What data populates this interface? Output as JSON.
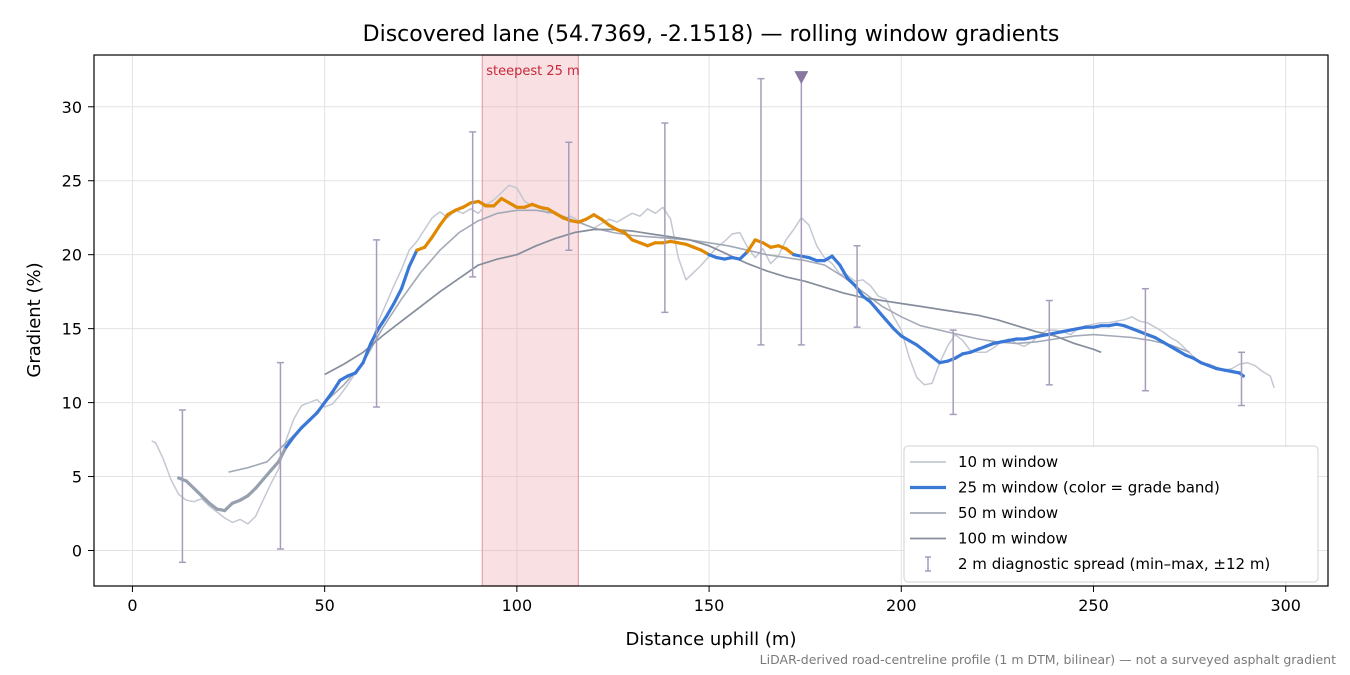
{
  "chart_data": {
    "type": "line",
    "title": "Discovered lane (54.7369, -2.1518) — rolling window gradients",
    "xlabel": "Distance uphill (m)",
    "ylabel": "Gradient (%)",
    "xlim": [
      -10,
      311
    ],
    "ylim": [
      -2.4,
      33.5
    ],
    "xticks": [
      0,
      50,
      100,
      150,
      200,
      250,
      300
    ],
    "yticks": [
      0,
      5,
      10,
      15,
      20,
      25,
      30
    ],
    "grid": true,
    "legend_position": "bottom-right",
    "footnote": "LiDAR-derived road-centreline profile (1 m DTM, bilinear) — not a surveyed asphalt gradient",
    "highlight": {
      "label": "steepest 25 m",
      "x_start": 91,
      "x_end": 116,
      "color": "#e8a0a8"
    },
    "marker": {
      "x": 174,
      "y": 32,
      "color": "#8878a0"
    },
    "grade_band_colors": {
      "moderate": "#3a78d8",
      "steep": "#e08800"
    },
    "legend": [
      {
        "label": "10 m window",
        "kind": "line",
        "color": "#c3c8d2"
      },
      {
        "label": "25 m window (color = grade band)",
        "kind": "thick",
        "color": "#3a78d8"
      },
      {
        "label": "50 m window",
        "kind": "line",
        "color": "#a2a9b7"
      },
      {
        "label": "100 m window",
        "kind": "line",
        "color": "#868e9d"
      },
      {
        "label": "2 m diagnostic spread (min–max, ±12 m)",
        "kind": "errorbar",
        "color": "#a89cbc"
      }
    ],
    "series": [
      {
        "name": "10 m window",
        "color": "#c3c8d2",
        "x": [
          5,
          6,
          8,
          10,
          12,
          14,
          16,
          18,
          20,
          22,
          24,
          26,
          28,
          30,
          32,
          34,
          36,
          38,
          40,
          42,
          44,
          46,
          48,
          50,
          52,
          54,
          56,
          58,
          60,
          62,
          64,
          66,
          68,
          70,
          72,
          74,
          76,
          78,
          80,
          82,
          84,
          86,
          88,
          90,
          92,
          94,
          96,
          98,
          100,
          102,
          104,
          106,
          108,
          110,
          112,
          114,
          116,
          118,
          120,
          122,
          124,
          126,
          128,
          130,
          132,
          134,
          136,
          138,
          140,
          142,
          144,
          146,
          148,
          150,
          152,
          154,
          156,
          158,
          160,
          162,
          164,
          166,
          168,
          170,
          172,
          174,
          176,
          178,
          180,
          182,
          184,
          186,
          188,
          190,
          192,
          194,
          196,
          198,
          200,
          202,
          204,
          206,
          208,
          210,
          212,
          214,
          216,
          218,
          220,
          222,
          224,
          226,
          228,
          230,
          232,
          234,
          236,
          238,
          240,
          242,
          244,
          246,
          248,
          250,
          252,
          254,
          256,
          258,
          260,
          262,
          264,
          266,
          268,
          270,
          272,
          274,
          276,
          278,
          280,
          282,
          284,
          286,
          288,
          290,
          292,
          294,
          296,
          297
        ],
        "y": [
          7.4,
          7.3,
          6.2,
          4.8,
          3.8,
          3.4,
          3.3,
          3.5,
          3.0,
          2.6,
          2.2,
          1.9,
          2.1,
          1.8,
          2.3,
          3.4,
          4.5,
          5.5,
          7.5,
          8.9,
          9.8,
          10.0,
          10.2,
          9.7,
          9.9,
          10.5,
          11.2,
          12.0,
          12.8,
          13.9,
          15.5,
          16.7,
          17.9,
          19.0,
          20.3,
          20.9,
          21.7,
          22.5,
          22.9,
          22.5,
          23.0,
          22.8,
          23.1,
          22.8,
          23.4,
          23.7,
          24.2,
          24.7,
          24.5,
          23.6,
          23.3,
          23.2,
          22.8,
          22.9,
          22.4,
          22.6,
          22.3,
          22.0,
          21.8,
          22.1,
          22.4,
          22.2,
          22.5,
          22.8,
          22.6,
          23.1,
          22.8,
          23.2,
          22.4,
          19.8,
          18.3,
          18.8,
          19.3,
          19.9,
          20.5,
          20.9,
          21.4,
          21.5,
          20.5,
          19.8,
          20.4,
          19.4,
          19.9,
          21.0,
          21.7,
          22.5,
          22.0,
          20.6,
          19.8,
          19.4,
          18.7,
          18.6,
          18.2,
          18.3,
          17.9,
          17.2,
          17.0,
          15.8,
          14.9,
          13.1,
          11.7,
          11.2,
          11.3,
          12.7,
          13.8,
          14.6,
          14.2,
          13.5,
          13.4,
          13.4,
          13.7,
          14.1,
          14.3,
          14.0,
          13.8,
          14.1,
          14.6,
          14.9,
          14.9,
          14.8,
          14.6,
          15.0,
          15.2,
          15.3,
          15.4,
          15.4,
          15.5,
          15.6,
          15.8,
          15.5,
          15.4,
          15.1,
          14.8,
          14.4,
          14.1,
          13.6,
          13.1,
          12.7,
          12.6,
          12.4,
          12.2,
          12.3,
          12.6,
          12.7,
          12.5,
          12.1,
          11.8,
          11.0
        ]
      },
      {
        "name": "25 m window (color = grade band)",
        "color": "#3a78d8",
        "steep_threshold": 20,
        "x": [
          12,
          14,
          16,
          18,
          20,
          22,
          24,
          26,
          28,
          30,
          32,
          34,
          36,
          38,
          40,
          42,
          44,
          46,
          48,
          50,
          52,
          54,
          56,
          58,
          60,
          62,
          64,
          66,
          68,
          70,
          72,
          74,
          76,
          78,
          80,
          82,
          84,
          86,
          88,
          90,
          92,
          94,
          96,
          98,
          100,
          102,
          104,
          106,
          108,
          110,
          112,
          114,
          116,
          118,
          120,
          122,
          124,
          126,
          128,
          130,
          132,
          134,
          136,
          138,
          140,
          142,
          144,
          146,
          148,
          150,
          152,
          154,
          156,
          158,
          160,
          162,
          164,
          166,
          168,
          170,
          172,
          174,
          176,
          178,
          180,
          182,
          184,
          186,
          188,
          190,
          192,
          194,
          196,
          198,
          200,
          202,
          204,
          206,
          208,
          210,
          212,
          214,
          216,
          218,
          220,
          222,
          224,
          226,
          228,
          230,
          232,
          234,
          236,
          238,
          240,
          242,
          244,
          246,
          248,
          250,
          252,
          254,
          256,
          258,
          260,
          262,
          264,
          266,
          268,
          270,
          272,
          274,
          276,
          278,
          280,
          282,
          284,
          286,
          288,
          289
        ],
        "y": [
          4.9,
          4.7,
          4.2,
          3.7,
          3.2,
          2.8,
          2.7,
          3.2,
          3.4,
          3.7,
          4.2,
          4.8,
          5.4,
          6.0,
          7.0,
          7.7,
          8.3,
          8.8,
          9.3,
          10.0,
          10.7,
          11.5,
          11.8,
          12.0,
          12.7,
          14.0,
          15.0,
          15.8,
          16.7,
          17.7,
          19.2,
          20.3,
          20.5,
          21.2,
          22.0,
          22.7,
          23.0,
          23.2,
          23.5,
          23.6,
          23.3,
          23.3,
          23.8,
          23.5,
          23.2,
          23.2,
          23.4,
          23.2,
          23.1,
          22.8,
          22.5,
          22.3,
          22.2,
          22.4,
          22.7,
          22.4,
          22.0,
          21.7,
          21.5,
          21.0,
          20.8,
          20.6,
          20.8,
          20.8,
          20.9,
          20.8,
          20.7,
          20.5,
          20.3,
          20.0,
          19.8,
          19.7,
          19.8,
          19.7,
          20.2,
          21.0,
          20.8,
          20.5,
          20.6,
          20.4,
          20.0,
          19.9,
          19.8,
          19.6,
          19.6,
          19.9,
          19.3,
          18.4,
          17.9,
          17.2,
          16.8,
          16.2,
          15.6,
          15.0,
          14.5,
          14.2,
          13.9,
          13.5,
          13.1,
          12.7,
          12.8,
          13.0,
          13.3,
          13.4,
          13.6,
          13.8,
          14.0,
          14.1,
          14.2,
          14.3,
          14.3,
          14.4,
          14.5,
          14.6,
          14.7,
          14.8,
          14.9,
          15.0,
          15.1,
          15.1,
          15.2,
          15.2,
          15.3,
          15.2,
          15.0,
          14.8,
          14.6,
          14.4,
          14.1,
          13.8,
          13.5,
          13.2,
          13.0,
          12.7,
          12.5,
          12.3,
          12.2,
          12.1,
          12.0,
          11.8
        ]
      },
      {
        "name": "50 m window",
        "color": "#a2a9b7",
        "x": [
          25,
          30,
          35,
          40,
          45,
          50,
          55,
          60,
          65,
          70,
          75,
          80,
          85,
          90,
          95,
          100,
          105,
          110,
          115,
          120,
          125,
          130,
          135,
          140,
          145,
          150,
          155,
          160,
          165,
          170,
          175,
          180,
          185,
          190,
          195,
          200,
          205,
          210,
          215,
          220,
          225,
          230,
          235,
          240,
          245,
          250,
          255,
          260,
          265,
          270,
          275
        ],
        "y": [
          5.3,
          5.6,
          6.0,
          7.3,
          8.5,
          10.0,
          11.2,
          12.7,
          15.0,
          17.0,
          18.8,
          20.3,
          21.5,
          22.3,
          22.8,
          23.0,
          23.0,
          22.8,
          22.3,
          21.8,
          21.5,
          21.3,
          21.2,
          21.1,
          21.0,
          20.8,
          20.6,
          20.3,
          20.0,
          19.8,
          19.6,
          19.3,
          18.5,
          17.5,
          16.5,
          15.8,
          15.2,
          14.9,
          14.6,
          14.3,
          14.1,
          14.0,
          14.1,
          14.3,
          14.5,
          14.6,
          14.5,
          14.4,
          14.2,
          13.9,
          13.4
        ]
      },
      {
        "name": "100 m window",
        "color": "#868e9d",
        "x": [
          50,
          55,
          60,
          65,
          70,
          75,
          80,
          85,
          90,
          95,
          100,
          105,
          110,
          115,
          120,
          125,
          130,
          135,
          140,
          145,
          150,
          155,
          160,
          165,
          170,
          175,
          180,
          185,
          190,
          195,
          200,
          205,
          210,
          215,
          220,
          225,
          230,
          235,
          240,
          245,
          250,
          252
        ],
        "y": [
          11.9,
          12.6,
          13.4,
          14.5,
          15.5,
          16.5,
          17.5,
          18.4,
          19.3,
          19.7,
          20.0,
          20.6,
          21.1,
          21.5,
          21.7,
          21.7,
          21.6,
          21.4,
          21.2,
          21.0,
          20.6,
          20.0,
          19.4,
          18.9,
          18.5,
          18.2,
          17.8,
          17.4,
          17.1,
          16.9,
          16.7,
          16.5,
          16.3,
          16.1,
          15.9,
          15.6,
          15.2,
          14.8,
          14.5,
          14.0,
          13.6,
          13.4
        ]
      }
    ],
    "error_bars": [
      {
        "x": 13,
        "min": -0.8,
        "max": 9.5
      },
      {
        "x": 38.5,
        "min": 0.1,
        "max": 12.7
      },
      {
        "x": 63.5,
        "min": 9.7,
        "max": 21.0
      },
      {
        "x": 88.5,
        "min": 18.5,
        "max": 28.3
      },
      {
        "x": 113.5,
        "min": 20.3,
        "max": 27.6
      },
      {
        "x": 138.5,
        "min": 16.1,
        "max": 28.9
      },
      {
        "x": 163.5,
        "min": 13.9,
        "max": 31.9
      },
      {
        "x": 174,
        "min": 13.9,
        "max": 32.0
      },
      {
        "x": 188.5,
        "min": 15.1,
        "max": 20.6
      },
      {
        "x": 213.5,
        "min": 9.2,
        "max": 14.9
      },
      {
        "x": 238.5,
        "min": 11.2,
        "max": 16.9
      },
      {
        "x": 263.5,
        "min": 10.8,
        "max": 17.7
      },
      {
        "x": 288.5,
        "min": 9.8,
        "max": 13.4
      }
    ]
  }
}
